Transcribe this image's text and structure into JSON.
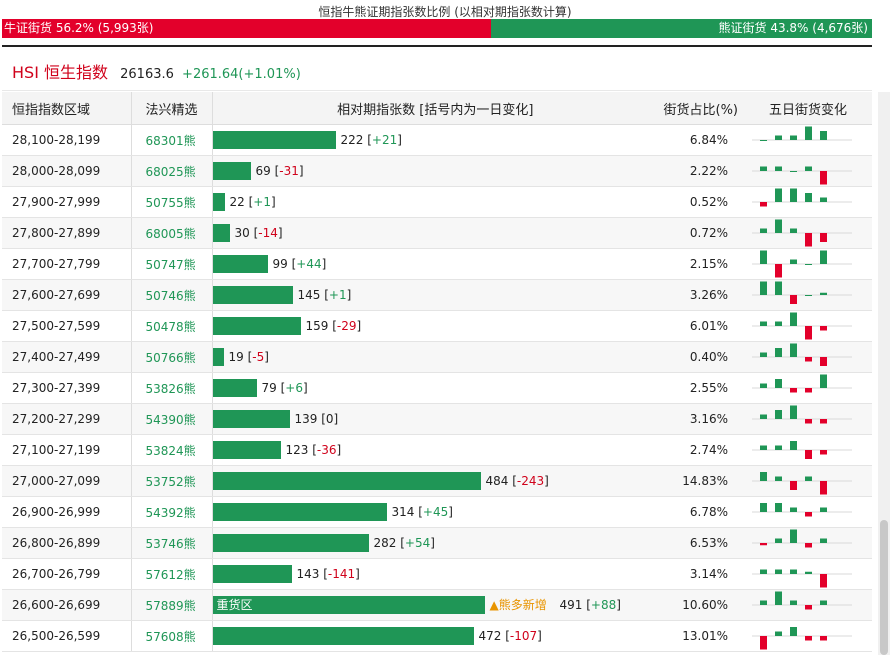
{
  "title": "恒指牛熊证期指张数比例 (以相对期指张数计算)",
  "ratio": {
    "bull_label": "牛证街货 56.2% (5,993张)",
    "bear_label": "熊证街货 43.8% (4,676张)",
    "bull_percent": 56.2,
    "bull_color": "#e3002b",
    "bear_color": "#1f9656"
  },
  "index": {
    "name": "HSI 恒生指数",
    "value": "26163.6",
    "change": "+261.64(+1.01%)"
  },
  "table": {
    "headers": [
      "恒指指数区域",
      "法兴精选",
      "相对期指张数 [括号内为一日变化]",
      "街货占比(%)",
      "五日街货变化"
    ],
    "bar_max": 491,
    "rows": [
      {
        "range": "28,100-28,199",
        "code": "68301熊",
        "contracts": 222,
        "num": "222",
        "chg": "+21",
        "pct": "6.84%",
        "spark": [
          0,
          1,
          1,
          3,
          2
        ]
      },
      {
        "range": "28,000-28,099",
        "code": "68025熊",
        "contracts": 69,
        "num": "69",
        "chg": "-31",
        "pct": "2.22%",
        "spark": [
          1,
          1,
          0,
          1,
          -3
        ]
      },
      {
        "range": "27,900-27,999",
        "code": "50755熊",
        "contracts": 22,
        "num": "22",
        "chg": "+1",
        "pct": "0.52%",
        "spark": [
          -1,
          3,
          3,
          2,
          1
        ]
      },
      {
        "range": "27,800-27,899",
        "code": "68005熊",
        "contracts": 30,
        "num": "30",
        "chg": "-14",
        "pct": "0.72%",
        "spark": [
          1,
          3,
          1,
          -3,
          -2
        ]
      },
      {
        "range": "27,700-27,799",
        "code": "50747熊",
        "contracts": 99,
        "num": "99",
        "chg": "+44",
        "pct": "2.15%",
        "spark": [
          3,
          -3,
          1,
          0,
          3
        ]
      },
      {
        "range": "27,600-27,699",
        "code": "50746熊",
        "contracts": 145,
        "num": "145",
        "chg": "+1",
        "pct": "3.26%",
        "spark": [
          3,
          3,
          -2,
          0,
          0.5
        ]
      },
      {
        "range": "27,500-27,599",
        "code": "50478熊",
        "contracts": 159,
        "num": "159",
        "chg": "-29",
        "pct": "6.01%",
        "spark": [
          1,
          1,
          3,
          -3,
          -1
        ]
      },
      {
        "range": "27,400-27,499",
        "code": "50766熊",
        "contracts": 19,
        "num": "19",
        "chg": "-5",
        "pct": "0.40%",
        "spark": [
          1,
          2,
          3,
          -1,
          -2
        ]
      },
      {
        "range": "27,300-27,399",
        "code": "53826熊",
        "contracts": 79,
        "num": "79",
        "chg": "+6",
        "pct": "2.55%",
        "spark": [
          1,
          2,
          -1,
          -1,
          3
        ]
      },
      {
        "range": "27,200-27,299",
        "code": "54390熊",
        "contracts": 139,
        "num": "139",
        "chg": "0",
        "pct": "3.16%",
        "spark": [
          1,
          2,
          3,
          -1,
          -1
        ]
      },
      {
        "range": "27,100-27,199",
        "code": "53824熊",
        "contracts": 123,
        "num": "123",
        "chg": "-36",
        "pct": "2.74%",
        "spark": [
          1,
          1,
          2,
          -2,
          -1
        ]
      },
      {
        "range": "27,000-27,099",
        "code": "53752熊",
        "contracts": 484,
        "num": "484",
        "chg": "-243",
        "pct": "14.83%",
        "spark": [
          2,
          1,
          -2,
          1,
          -3
        ]
      },
      {
        "range": "26,900-26,999",
        "code": "54392熊",
        "contracts": 314,
        "num": "314",
        "chg": "+45",
        "pct": "6.78%",
        "spark": [
          2,
          2,
          1,
          -1,
          1
        ]
      },
      {
        "range": "26,800-26,899",
        "code": "53746熊",
        "contracts": 282,
        "num": "282",
        "chg": "+54",
        "pct": "6.53%",
        "spark": [
          -0.5,
          1,
          3,
          -1,
          1
        ]
      },
      {
        "range": "26,700-26,799",
        "code": "57612熊",
        "contracts": 143,
        "num": "143",
        "chg": "-141",
        "pct": "3.14%",
        "spark": [
          1,
          1,
          1,
          0.5,
          -3
        ]
      },
      {
        "range": "26,600-26,699",
        "code": "57889熊",
        "contracts": 491,
        "num": "491",
        "chg": "+88",
        "pct": "10.60%",
        "spark": [
          1,
          3,
          1,
          -1,
          1
        ],
        "bar_label": "重货区",
        "tag": "▲熊多新增"
      },
      {
        "range": "26,500-26,599",
        "code": "57608熊",
        "contracts": 472,
        "num": "472",
        "chg": "-107",
        "pct": "13.01%",
        "spark": [
          -3,
          1,
          2,
          -1,
          -1
        ]
      }
    ]
  }
}
